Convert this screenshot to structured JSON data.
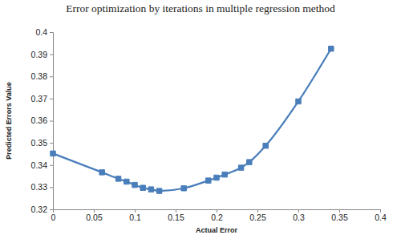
{
  "chart_data": {
    "type": "line",
    "title": "Error optimization by iterations in multiple regression method",
    "x_label": "Actual Error",
    "y_label": "Predicted Errors Value",
    "x": [
      0,
      0.06,
      0.08,
      0.09,
      0.1,
      0.11,
      0.12,
      0.13,
      0.16,
      0.19,
      0.2,
      0.21,
      0.23,
      0.24,
      0.26,
      0.3,
      0.34
    ],
    "values": [
      0.3452,
      0.3367,
      0.3338,
      0.3325,
      0.331,
      0.3297,
      0.329,
      0.3283,
      0.3295,
      0.333,
      0.3343,
      0.3357,
      0.3388,
      0.3413,
      0.3487,
      0.3687,
      0.3925
    ],
    "color": "#4a7ebb",
    "marker": "square",
    "line_style": "solid",
    "xlim": [
      0,
      0.4
    ],
    "ylim": [
      0.32,
      0.4
    ],
    "xticks": [
      0,
      0.05,
      0.1,
      0.15,
      0.2,
      0.25,
      0.3,
      0.35,
      0.4
    ],
    "yticks": [
      0.32,
      0.33,
      0.34,
      0.35,
      0.36,
      0.37,
      0.38,
      0.39,
      0.4
    ],
    "grid": false
  }
}
